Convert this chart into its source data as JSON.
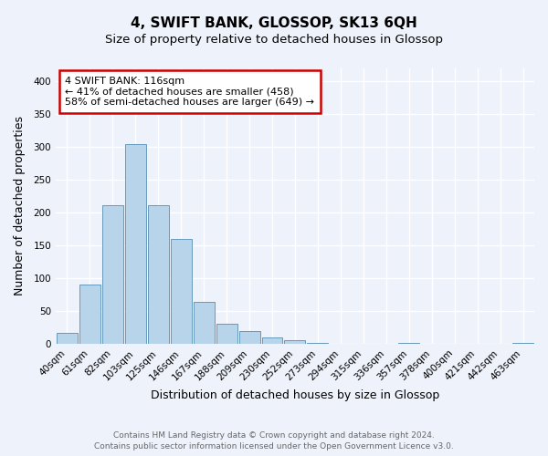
{
  "title": "4, SWIFT BANK, GLOSSOP, SK13 6QH",
  "subtitle": "Size of property relative to detached houses in Glossop",
  "xlabel": "Distribution of detached houses by size in Glossop",
  "ylabel": "Number of detached properties",
  "bar_color": "#b8d4ea",
  "bar_edge_color": "#6699bb",
  "categories": [
    "40sqm",
    "61sqm",
    "82sqm",
    "103sqm",
    "125sqm",
    "146sqm",
    "167sqm",
    "188sqm",
    "209sqm",
    "230sqm",
    "252sqm",
    "273sqm",
    "294sqm",
    "315sqm",
    "336sqm",
    "357sqm",
    "378sqm",
    "400sqm",
    "421sqm",
    "442sqm",
    "463sqm"
  ],
  "values": [
    17,
    90,
    211,
    305,
    212,
    160,
    64,
    31,
    20,
    10,
    5,
    1,
    0,
    0,
    0,
    1,
    0,
    0,
    0,
    0,
    1
  ],
  "ylim": [
    0,
    420
  ],
  "yticks": [
    0,
    50,
    100,
    150,
    200,
    250,
    300,
    350,
    400
  ],
  "annotation_title": "4 SWIFT BANK: 116sqm",
  "annotation_line1": "← 41% of detached houses are smaller (458)",
  "annotation_line2": "58% of semi-detached houses are larger (649) →",
  "annotation_box_color": "#ffffff",
  "annotation_box_edge": "#cc0000",
  "footer_line1": "Contains HM Land Registry data © Crown copyright and database right 2024.",
  "footer_line2": "Contains public sector information licensed under the Open Government Licence v3.0.",
  "background_color": "#eef2fb",
  "plot_bg_color": "#eef2fb",
  "grid_color": "#ffffff",
  "title_fontsize": 11,
  "subtitle_fontsize": 9.5,
  "axis_label_fontsize": 9,
  "tick_fontsize": 7.5,
  "annotation_fontsize": 8,
  "footer_fontsize": 6.5
}
